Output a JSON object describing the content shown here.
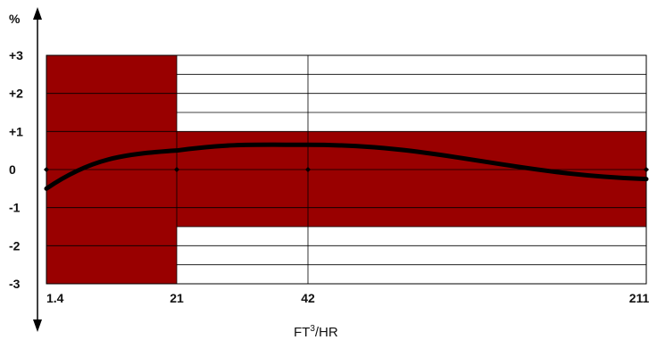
{
  "chart_data": {
    "type": "line",
    "y_unit": "%",
    "xlabel_main": "FT",
    "xlabel_sup": "3",
    "xlabel_tail": "/HR",
    "x_ticks": [
      "1.4",
      "21",
      "42",
      "211"
    ],
    "y_ticks": [
      "+3",
      "+2",
      "+1",
      "0",
      "-1",
      "-2",
      "-3"
    ],
    "ylim": [
      -3,
      3
    ],
    "grid": true,
    "tolerance_bands": [
      {
        "x_from": "1.4",
        "x_to": "21",
        "y_min": -3,
        "y_max": 3
      },
      {
        "x_from": "21",
        "x_to": "211",
        "y_min": -1.5,
        "y_max": 1
      }
    ],
    "series": [
      {
        "points": [
          {
            "x": "1.4",
            "y": -0.5
          },
          {
            "x": "21",
            "y": 0.5
          },
          {
            "x": "42",
            "y": 0.65
          },
          {
            "x": "211",
            "y": -0.25
          }
        ]
      }
    ],
    "colors": {
      "band": "#990000",
      "curve": "#000000",
      "grid": "#000000"
    }
  }
}
